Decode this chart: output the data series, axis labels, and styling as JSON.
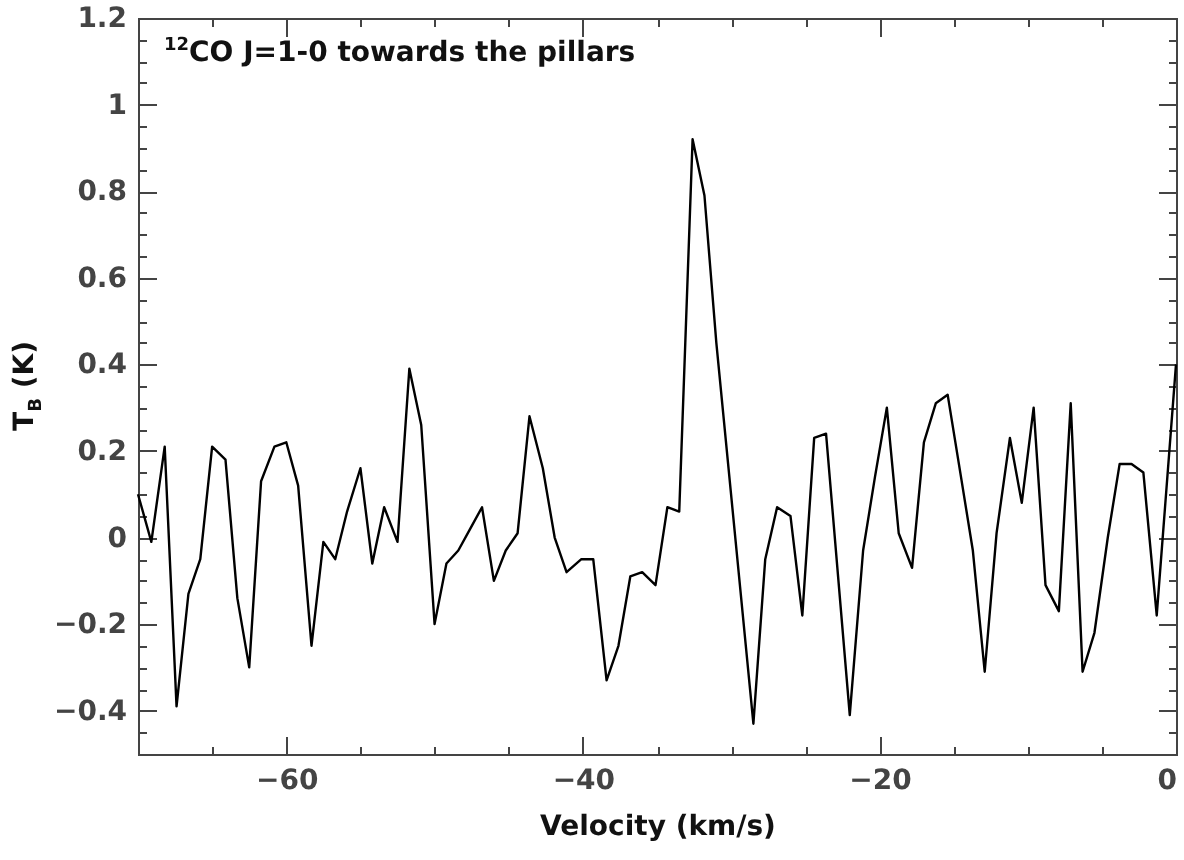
{
  "chart_data": {
    "type": "line",
    "xlabel": "Velocity (km/s)",
    "ylabel": "T$_{B}$ (K)",
    "annotations": [
      "$^{12}$CO J=1-0 towards the pillars"
    ],
    "xlim": [
      -70,
      0
    ],
    "xticks": [
      {
        "value": -70,
        "label": null
      },
      {
        "value": -65,
        "label": null
      },
      -60,
      {
        "value": -55,
        "label": null
      },
      {
        "value": -50,
        "label": null
      },
      {
        "value": -45,
        "label": null
      },
      -40,
      {
        "value": -35,
        "label": null
      },
      {
        "value": -30,
        "label": null
      },
      {
        "value": -25,
        "label": null
      },
      -20,
      {
        "value": -15,
        "label": null
      },
      {
        "value": -10,
        "label": null
      },
      {
        "value": -5,
        "label": null
      },
      0
    ],
    "ylim": [
      -0.5,
      1.2
    ],
    "yticks": [
      {
        "value": -0.45,
        "label": null
      },
      -0.4,
      {
        "value": -0.35,
        "label": null
      },
      {
        "value": -0.3,
        "label": null
      },
      {
        "value": -0.25,
        "label": null
      },
      -0.2,
      {
        "value": -0.15,
        "label": null
      },
      {
        "value": -0.1,
        "label": null
      },
      {
        "value": -0.05,
        "label": null
      },
      0,
      {
        "value": 0.05,
        "label": null
      },
      {
        "value": 0.1,
        "label": null
      },
      {
        "value": 0.15,
        "label": null
      },
      0.2,
      {
        "value": 0.25,
        "label": null
      },
      {
        "value": 0.3,
        "label": null
      },
      {
        "value": 0.35,
        "label": null
      },
      0.4,
      {
        "value": 0.45,
        "label": null
      },
      {
        "value": 0.5,
        "label": null
      },
      {
        "value": 0.55,
        "label": null
      },
      0.6,
      {
        "value": 0.65,
        "label": null
      },
      {
        "value": 0.7,
        "label": null
      },
      {
        "value": 0.75,
        "label": null
      },
      0.8,
      {
        "value": 0.85,
        "label": null
      },
      {
        "value": 0.9,
        "label": null
      },
      {
        "value": 0.95,
        "label": null
      },
      1,
      {
        "value": 1.05,
        "label": null
      },
      {
        "value": 1.1,
        "label": null
      },
      {
        "value": 1.15,
        "label": null
      },
      1.2
    ],
    "grid": false,
    "x": [
      -70.0,
      -69.1,
      -68.2,
      -67.4,
      -66.6,
      -65.8,
      -65.0,
      -64.1,
      -63.3,
      -62.5,
      -61.7,
      -60.8,
      -60.0,
      -59.2,
      -58.3,
      -57.5,
      -56.7,
      -55.9,
      -55.0,
      -54.2,
      -53.4,
      -52.5,
      -51.7,
      -50.9,
      -50.0,
      -49.2,
      -48.4,
      -47.6,
      -46.8,
      -46.0,
      -45.2,
      -44.4,
      -43.6,
      -42.7,
      -41.9,
      -41.1,
      -40.1,
      -39.3,
      -38.4,
      -37.6,
      -36.8,
      -36.0,
      -35.1,
      -34.3,
      -33.5,
      -32.6,
      -31.8,
      -31.0,
      -28.5,
      -27.7,
      -26.9,
      -26.0,
      -25.2,
      -24.4,
      -23.6,
      -22.0,
      -21.1,
      -20.3,
      -19.5,
      -18.7,
      -17.8,
      -17.0,
      -16.2,
      -15.4,
      -14.5,
      -13.7,
      -12.9,
      -12.1,
      -11.2,
      -10.4,
      -9.6,
      -8.8,
      -7.9,
      -7.1,
      -6.3,
      -5.5,
      -4.6,
      -3.8,
      -3.0,
      -2.2,
      -1.3,
      0.0
    ],
    "series": [
      {
        "color": "#000000",
        "values": [
          0.1,
          -0.01,
          0.21,
          -0.39,
          -0.13,
          -0.05,
          0.21,
          0.18,
          -0.14,
          -0.3,
          0.13,
          0.21,
          0.22,
          0.12,
          -0.25,
          -0.01,
          -0.05,
          0.06,
          0.16,
          -0.06,
          0.07,
          -0.01,
          0.39,
          0.26,
          -0.2,
          -0.06,
          -0.03,
          0.02,
          0.07,
          -0.1,
          -0.03,
          0.01,
          0.28,
          0.16,
          0.0,
          -0.08,
          -0.05,
          -0.05,
          -0.33,
          -0.25,
          -0.09,
          -0.08,
          -0.11,
          0.07,
          0.06,
          0.92,
          0.79,
          0.45,
          -0.43,
          -0.05,
          0.07,
          0.05,
          -0.18,
          0.23,
          0.24,
          -0.41,
          -0.03,
          0.14,
          0.3,
          0.01,
          -0.07,
          0.22,
          0.31,
          0.33,
          0.14,
          -0.03,
          -0.31,
          0.01,
          0.23,
          0.08,
          0.3,
          -0.11,
          -0.17,
          0.31,
          -0.31,
          -0.22,
          0.0,
          0.17,
          0.17,
          0.15,
          -0.18,
          0.4
        ]
      }
    ]
  }
}
